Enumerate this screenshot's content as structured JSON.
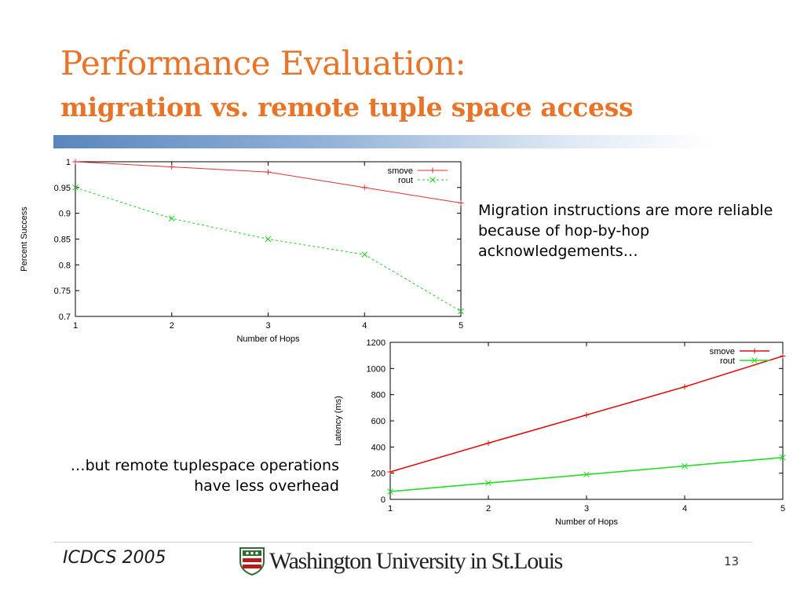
{
  "slide": {
    "title": "Performance Evaluation:",
    "subtitle": "migration vs. remote tuple space access",
    "note_top": "Migration instructions are more reliable because of hop-by-hop acknowledgements…",
    "note_bottom_line1": "…but remote tuplespace operations",
    "note_bottom_line2": "have less overhead",
    "title_color": "#e8742a"
  },
  "footer": {
    "venue": "ICDCS 2005",
    "logo_text": "Washington University in St.Louis",
    "page_number": "13"
  },
  "chart_data": [
    {
      "type": "line",
      "xlabel": "Number of Hops",
      "ylabel": "Percent Success",
      "x": [
        1,
        2,
        3,
        4,
        5
      ],
      "xlim": [
        1,
        5
      ],
      "ylim": [
        0.7,
        1
      ],
      "x_ticks": [
        "1",
        "2",
        "3",
        "4",
        "5"
      ],
      "y_ticks": [
        "0.7",
        "0.75",
        "0.8",
        "0.85",
        "0.9",
        "0.95",
        "1"
      ],
      "series": [
        {
          "name": "smove",
          "values": [
            1.0,
            0.99,
            0.98,
            0.95,
            0.92
          ],
          "color": "#e03030",
          "dash": false,
          "marker": "plus"
        },
        {
          "name": "rout",
          "values": [
            0.95,
            0.89,
            0.85,
            0.82,
            0.71
          ],
          "color": "#22cc22",
          "dash": true,
          "marker": "x"
        }
      ],
      "legend_position": "top-right",
      "grid": false
    },
    {
      "type": "line",
      "xlabel": "Number of Hops",
      "ylabel": "Latency (ms)",
      "x": [
        1,
        2,
        3,
        4,
        5
      ],
      "xlim": [
        1,
        5
      ],
      "ylim": [
        0,
        1200
      ],
      "x_ticks": [
        "1",
        "2",
        "3",
        "4",
        "5"
      ],
      "y_ticks": [
        "0",
        "200",
        "400",
        "600",
        "800",
        "1000",
        "1200"
      ],
      "series": [
        {
          "name": "smove",
          "values": [
            210,
            430,
            645,
            860,
            1095
          ],
          "color": "#e01010",
          "dash": false,
          "marker": "plus"
        },
        {
          "name": "rout",
          "values": [
            60,
            125,
            190,
            255,
            320
          ],
          "color": "#22dd22",
          "dash": false,
          "marker": "x"
        }
      ],
      "legend_position": "top-right",
      "grid": false
    }
  ]
}
